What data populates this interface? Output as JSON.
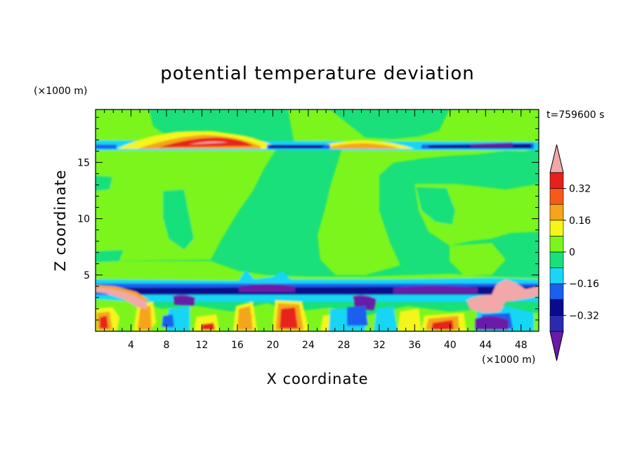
{
  "chart_data": {
    "type": "heatmap",
    "title": "potential temperature deviation",
    "xlabel": "X coordinate",
    "ylabel": "Z coordinate",
    "x_unit": "(×1000 m)",
    "y_unit": "(×1000 m)",
    "time_label": "t=759600 s",
    "xlim": [
      0,
      50
    ],
    "ylim": [
      0,
      19.7
    ],
    "x_ticks": [
      4,
      8,
      12,
      16,
      20,
      24,
      28,
      32,
      36,
      40,
      44,
      48
    ],
    "x_tick_labels": [
      "4",
      "8",
      "12",
      "16",
      "20",
      "24",
      "28",
      "32",
      "36",
      "40",
      "44",
      "48"
    ],
    "y_ticks": [
      5,
      10,
      15
    ],
    "y_tick_labels": [
      "5",
      "10",
      "15"
    ],
    "colorbar": {
      "levels": [
        -0.4,
        -0.32,
        -0.24,
        -0.16,
        -0.08,
        0,
        0.08,
        0.16,
        0.24,
        0.32,
        0.4
      ],
      "colors": [
        "#6a1aa8",
        "#2a2ab0",
        "#0a0a8c",
        "#1a5ff0",
        "#19d6f5",
        "#19e07a",
        "#7cf51a",
        "#f5f51a",
        "#f5a51a",
        "#f55a1a",
        "#e8201a",
        "#f2a8a8"
      ],
      "tick_values": [
        0.32,
        0.16,
        0,
        -0.16,
        -0.32
      ],
      "tick_labels": [
        "0.32",
        "0.16",
        "0",
        "−0.16",
        "−0.32"
      ],
      "extend": "both"
    },
    "background_color": "#19e07a"
  }
}
